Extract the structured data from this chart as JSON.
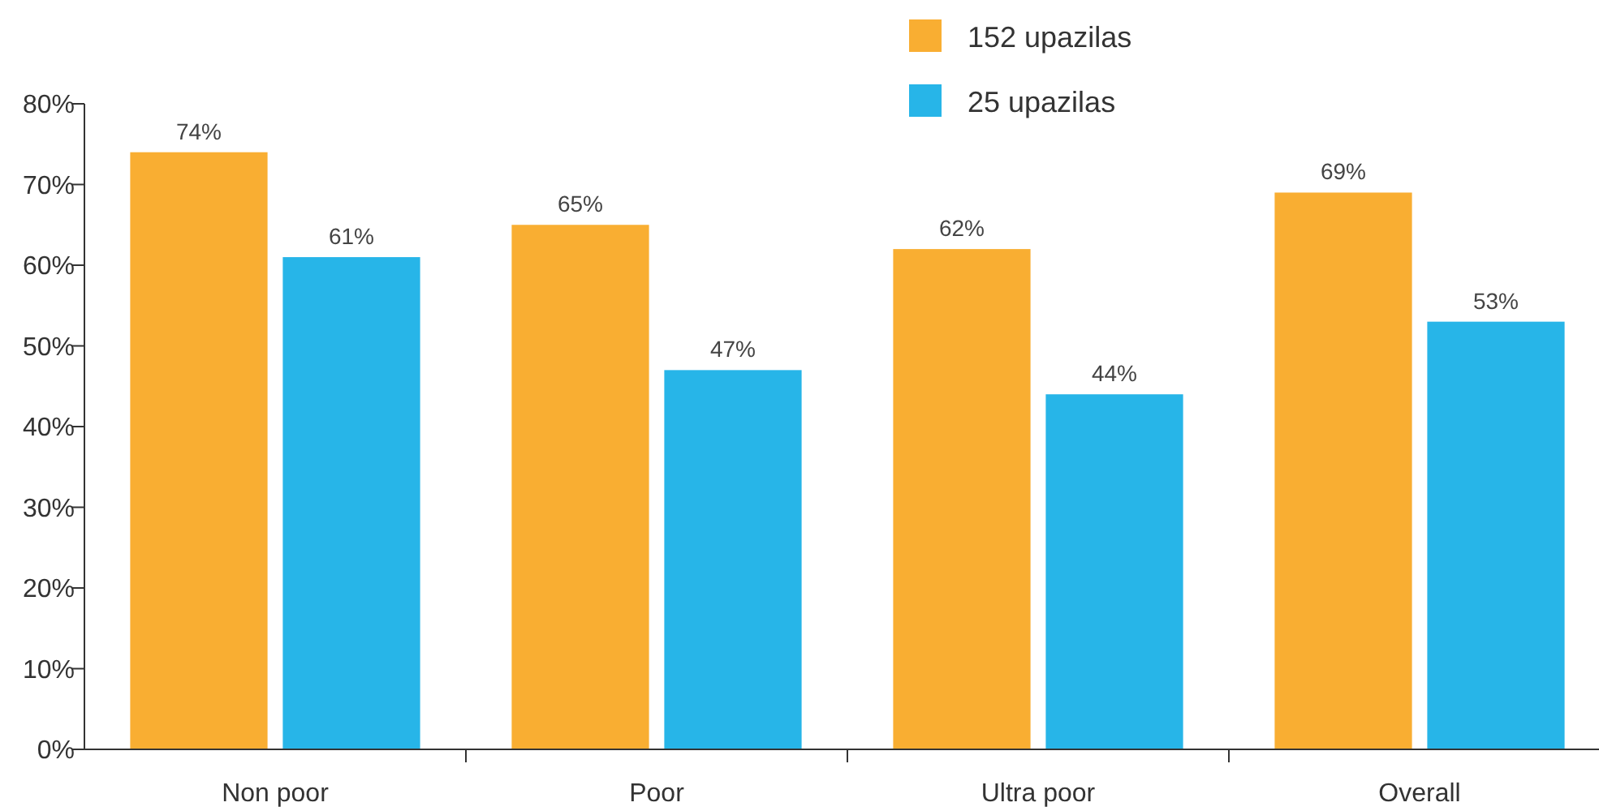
{
  "chart_data": {
    "type": "bar",
    "categories": [
      "Non poor",
      "Poor",
      "Ultra poor",
      "Overall"
    ],
    "series": [
      {
        "name": "152 upazilas",
        "color": "#f9ae32",
        "values": [
          74,
          65,
          62,
          69
        ],
        "value_labels": [
          "74%",
          "65%",
          "62%",
          "69%"
        ]
      },
      {
        "name": "25 upazilas",
        "color": "#27b5e8",
        "values": [
          61,
          47,
          44,
          53
        ],
        "value_labels": [
          "61%",
          "47%",
          "44%",
          "53%"
        ]
      }
    ],
    "ylim": [
      0,
      80
    ],
    "yticks": [
      {
        "value": 0,
        "label": "0%"
      },
      {
        "value": 10,
        "label": "10%"
      },
      {
        "value": 20,
        "label": "20%"
      },
      {
        "value": 30,
        "label": "30%"
      },
      {
        "value": 40,
        "label": "40%"
      },
      {
        "value": 50,
        "label": "50%"
      },
      {
        "value": 60,
        "label": "60%"
      },
      {
        "value": 70,
        "label": "70%"
      },
      {
        "value": 80,
        "label": "80%"
      }
    ],
    "grid": false,
    "legend": "top right"
  }
}
